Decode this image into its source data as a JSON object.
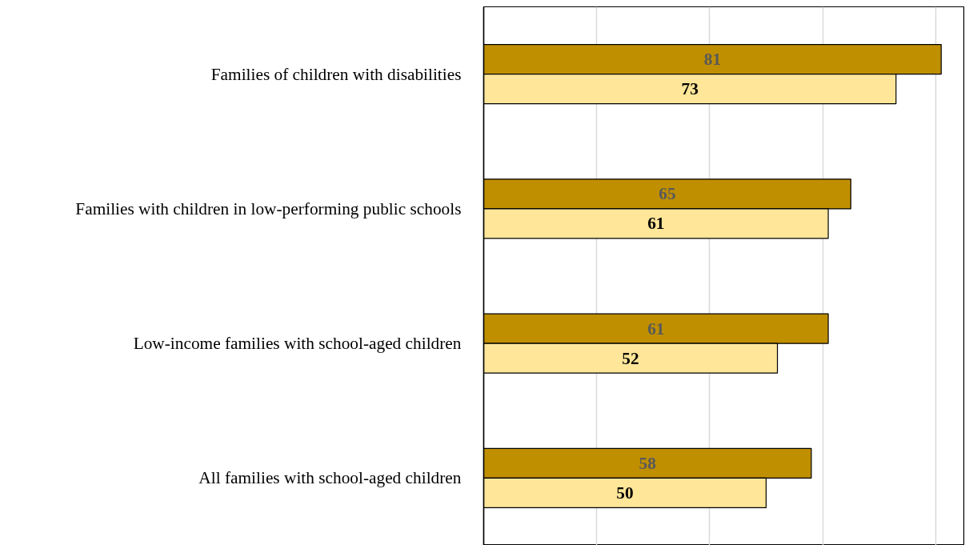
{
  "chart_data": {
    "type": "bar",
    "orientation": "horizontal",
    "categories": [
      "Families of children with disabilities",
      "Families with children in low-performing public schools",
      "Low-income families with school-aged children",
      "All families with school-aged children"
    ],
    "series": [
      {
        "color": "#bf8f00",
        "values": [
          81,
          65,
          61,
          58
        ]
      },
      {
        "color": "#ffe699",
        "values": [
          73,
          61,
          52,
          50
        ]
      }
    ],
    "xlim": [
      0,
      85
    ],
    "xticks": [
      {
        "value": 0,
        "label": null
      },
      {
        "value": 20,
        "label": null
      },
      {
        "value": 40,
        "label": null
      },
      {
        "value": 60,
        "label": null
      },
      {
        "value": 80,
        "label": null
      }
    ],
    "tick_labels": "y",
    "grid": "x",
    "data_labels": true
  }
}
